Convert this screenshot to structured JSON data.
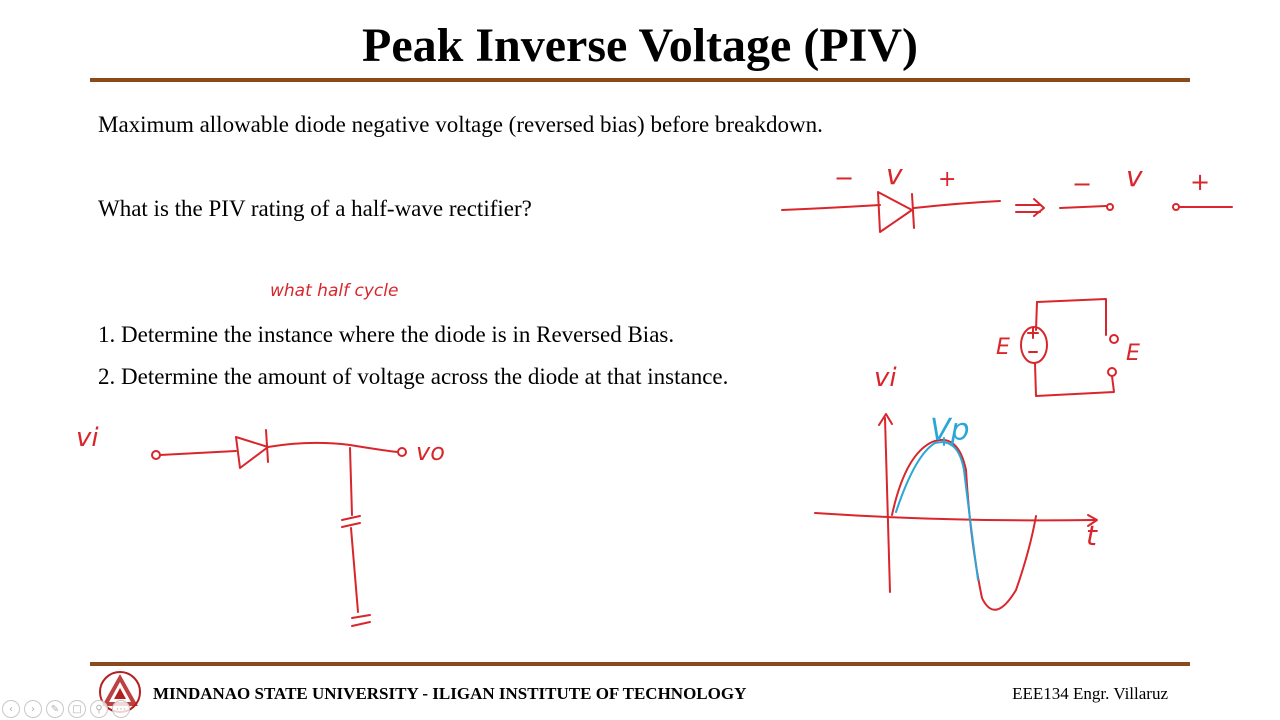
{
  "slide": {
    "title": "Peak Inverse Voltage (PIV)",
    "definition": "Maximum allowable diode negative voltage (reversed bias) before breakdown.",
    "question": "What is the PIV rating of a half-wave rectifier?",
    "steps": [
      "1. Determine the instance where the diode is in Reversed Bias.",
      "2. Determine the amount of voltage across the diode at that instance."
    ]
  },
  "annotations": {
    "handwritten_note": "what half cycle",
    "vi_circuit": "vi",
    "vo_circuit": "vo",
    "vi_graph": "vi",
    "vp_label": "Vp",
    "minus_1": "−",
    "v_1": "v",
    "plus_1": "+",
    "minus_2": "−",
    "v_2": "v",
    "plus_2": "+",
    "e_source": "E",
    "e_open": "E",
    "t_axis": "t"
  },
  "footer": {
    "institution": "MINDANAO STATE UNIVERSITY - ILIGAN INSTITUTE OF TECHNOLOGY",
    "course": "EEE134 Engr. Villaruz"
  },
  "colors": {
    "accent_rule": "#8a4a1c",
    "ink_red": "#d8262c",
    "ink_blue": "#2aa7d6",
    "logo_red": "#b32020"
  },
  "toolbar": {
    "icons": [
      "prev-icon",
      "next-icon",
      "pen-icon",
      "slides-icon",
      "zoom-icon",
      "more-icon"
    ]
  }
}
